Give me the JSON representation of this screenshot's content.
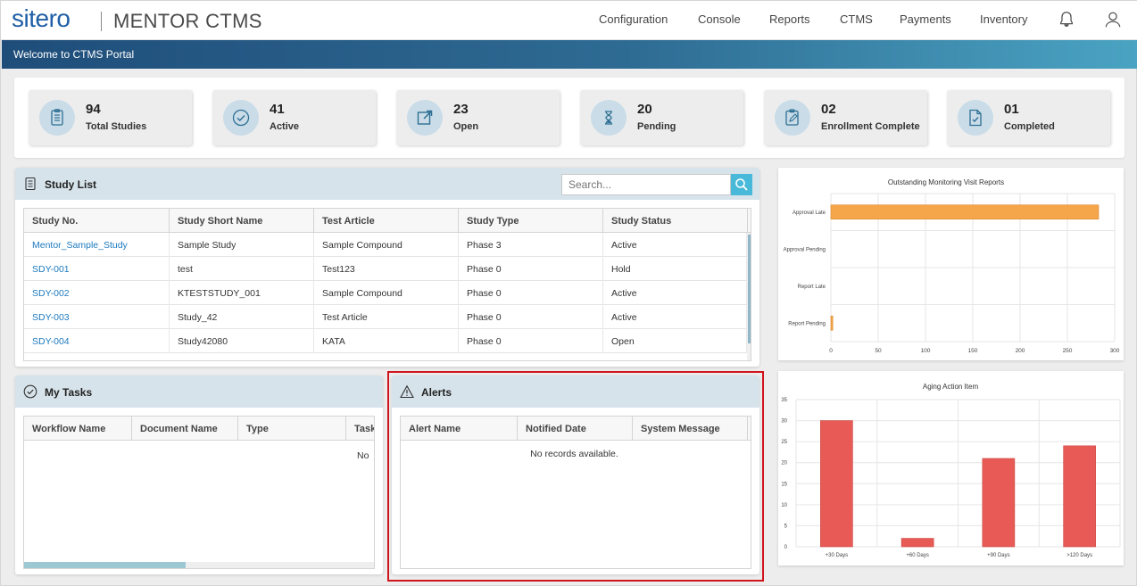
{
  "brand": {
    "logo": "sitero",
    "product": "MENTOR CTMS"
  },
  "nav": {
    "items": [
      "Configuration",
      "Console",
      "Reports",
      "CTMS",
      "Payments",
      "Inventory"
    ],
    "bell_icon": "bell-icon",
    "user_icon": "user-icon"
  },
  "welcome": "Welcome to CTMS Portal",
  "stats": [
    {
      "value": "94",
      "label": "Total Studies",
      "icon": "clipboard-list-icon"
    },
    {
      "value": "41",
      "label": "Active",
      "icon": "check-circle-icon"
    },
    {
      "value": "23",
      "label": "Open",
      "icon": "external-link-icon"
    },
    {
      "value": "20",
      "label": "Pending",
      "icon": "hourglass-icon"
    },
    {
      "value": "02",
      "label": "Enrollment Complete",
      "icon": "clipboard-edit-icon"
    },
    {
      "value": "01",
      "label": "Completed",
      "icon": "file-check-icon"
    }
  ],
  "study_list": {
    "title": "Study List",
    "search_placeholder": "Search...",
    "columns": [
      "Study No.",
      "Study Short Name",
      "Test Article",
      "Study Type",
      "Study Status"
    ],
    "rows": [
      [
        "Mentor_Sample_Study",
        "Sample Study",
        "Sample Compound",
        "Phase 3",
        "Active"
      ],
      [
        "SDY-001",
        "test",
        "Test123",
        "Phase 0",
        "Hold"
      ],
      [
        "SDY-002",
        "KTESTSTUDY_001",
        "Sample Compound",
        "Phase 0",
        "Active"
      ],
      [
        "SDY-003",
        "Study_42",
        "Test Article",
        "Phase 0",
        "Active"
      ],
      [
        "SDY-004",
        "Study42080",
        "KATA",
        "Phase 0",
        "Open"
      ]
    ]
  },
  "my_tasks": {
    "title": "My Tasks",
    "columns": [
      "Workflow Name",
      "Document Name",
      "Type",
      "Task"
    ],
    "empty_text": "No"
  },
  "alerts": {
    "title": "Alerts",
    "columns": [
      "Alert Name",
      "Notified Date",
      "System Message"
    ],
    "empty_text": "No records available."
  },
  "chart_data": [
    {
      "type": "bar",
      "orientation": "horizontal",
      "title": "Outstanding Monitoring Visit Reports",
      "categories": [
        "Approval Late",
        "Approval Pending",
        "Report Late",
        "Report Pending"
      ],
      "values": [
        283,
        0,
        0,
        2
      ],
      "xlim": [
        0,
        300
      ],
      "ticks": [
        0,
        50,
        100,
        150,
        200,
        250,
        300
      ],
      "color": "#f5a54a",
      "grid": true
    },
    {
      "type": "bar",
      "title": "Aging Action Item",
      "categories": [
        "+30 Days",
        "+60 Days",
        "+90 Days",
        ">120 Days"
      ],
      "values": [
        30,
        2,
        21,
        24
      ],
      "ylim": [
        0,
        35
      ],
      "ticks": [
        0,
        5,
        10,
        15,
        20,
        25,
        30,
        35
      ],
      "color": "#e85a55",
      "grid": true
    }
  ]
}
